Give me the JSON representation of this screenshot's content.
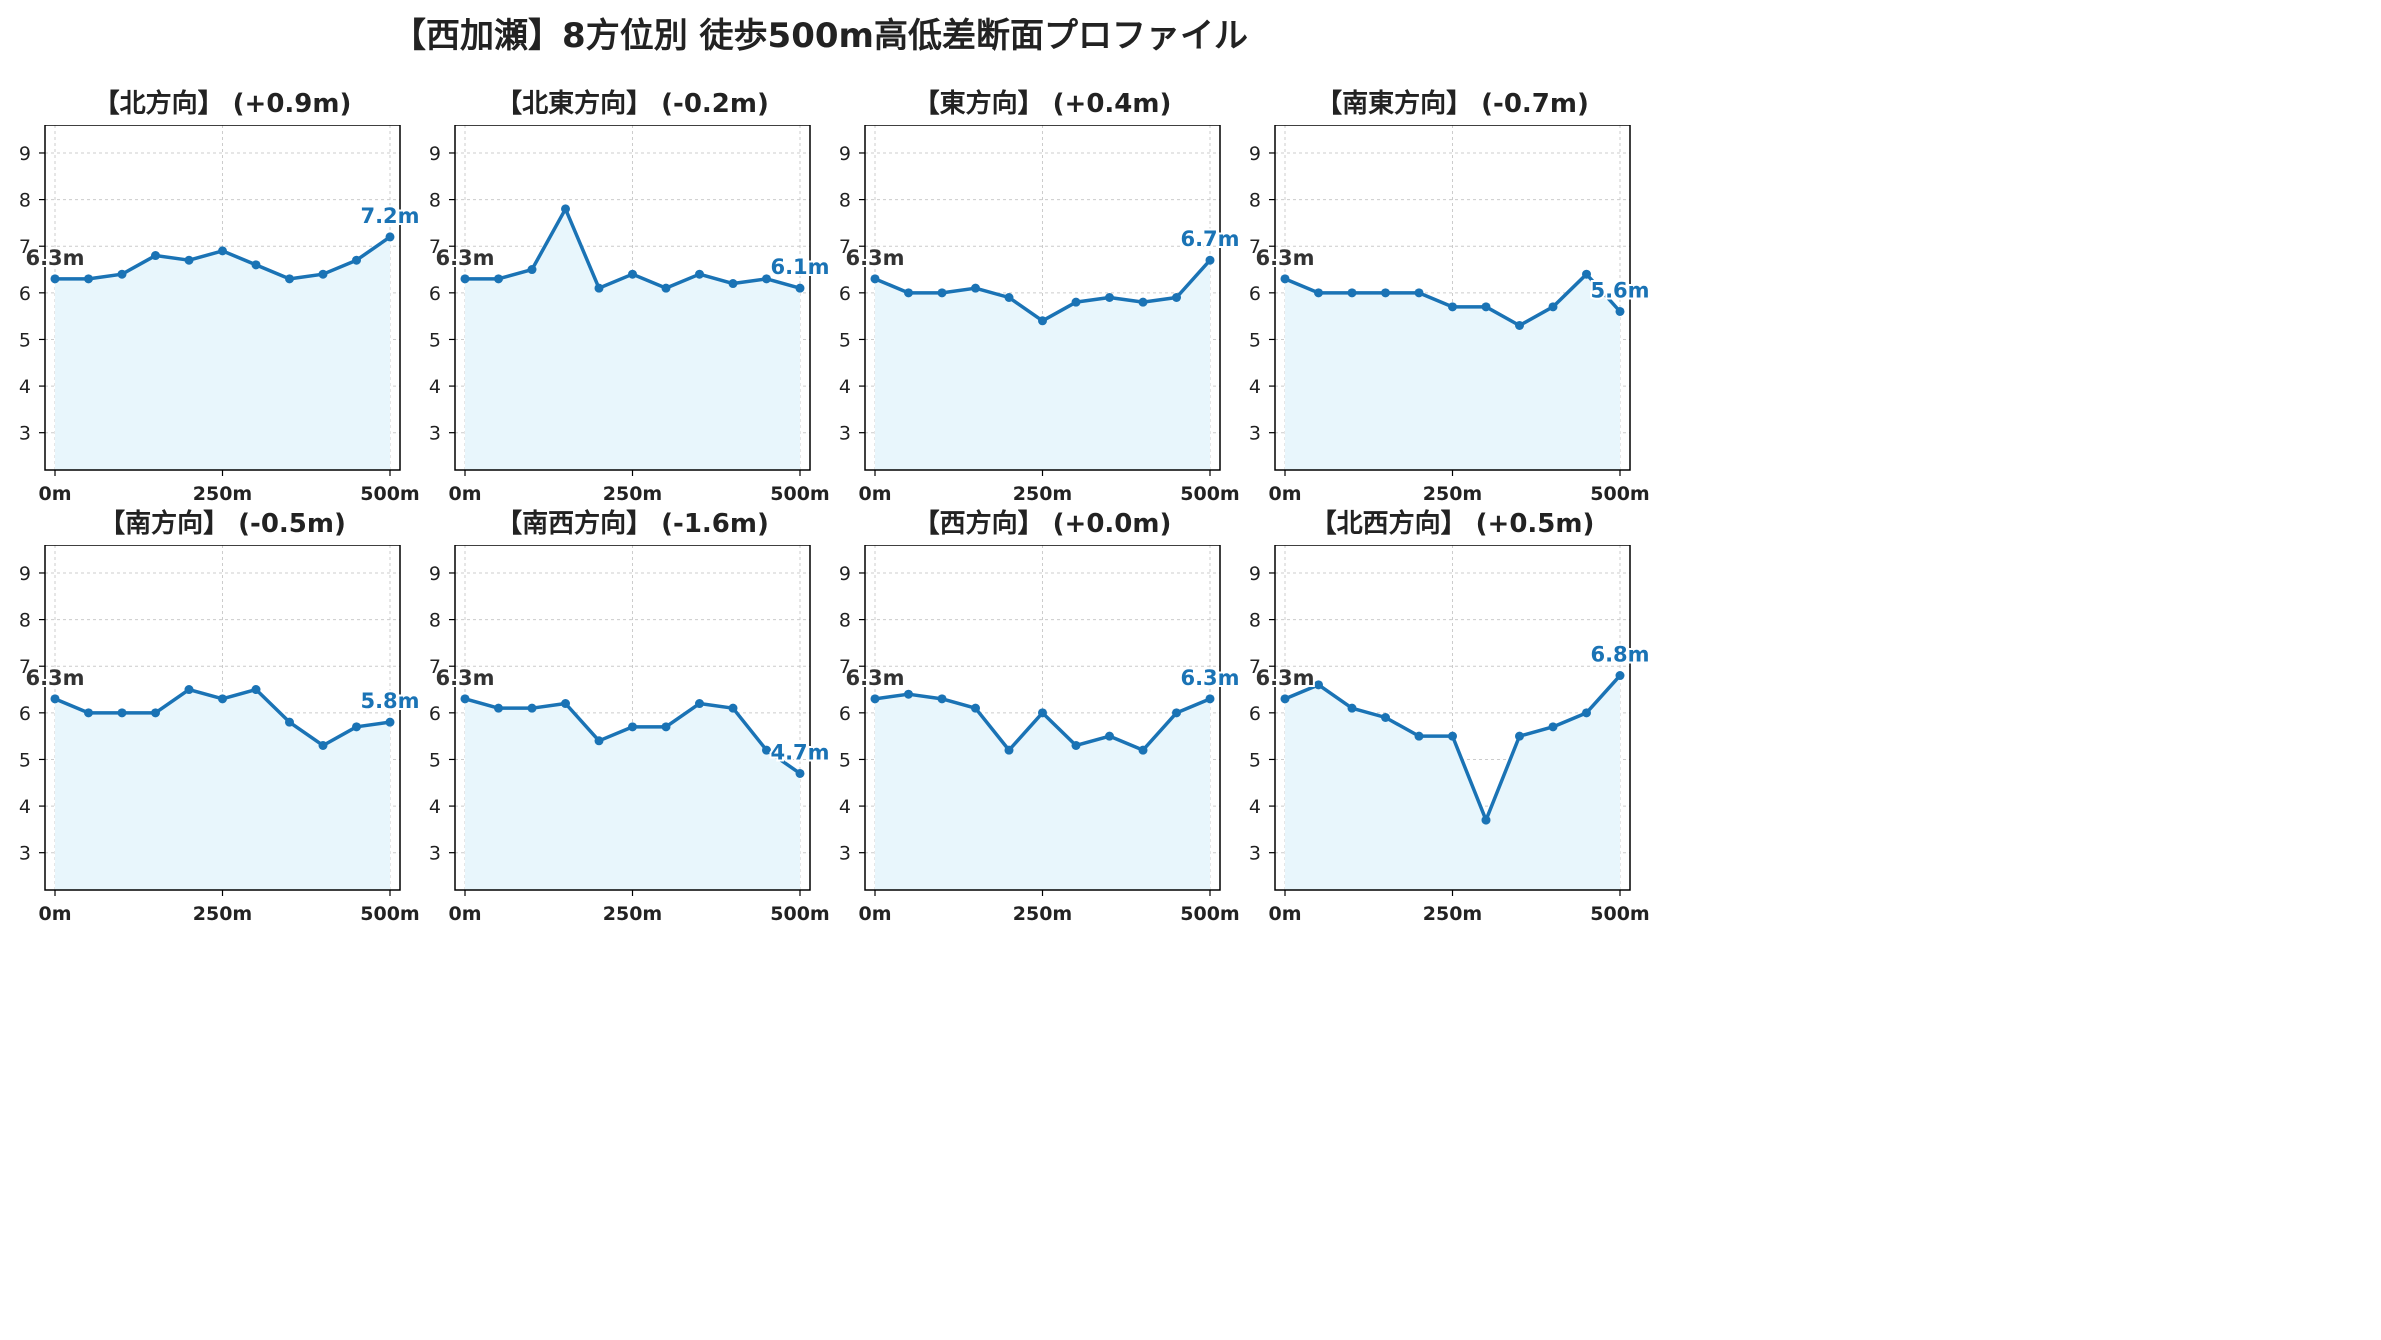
{
  "title": "【西加瀬】8方位別 徒歩500m高低差断面プロファイル",
  "chart_data": [
    {
      "type": "line",
      "title": "【北方向】 (+0.9m)",
      "x": [
        0,
        50,
        100,
        150,
        200,
        250,
        300,
        350,
        400,
        450,
        500
      ],
      "values": [
        6.3,
        6.3,
        6.4,
        6.8,
        6.7,
        6.9,
        6.6,
        6.3,
        6.4,
        6.7,
        7.2
      ],
      "start_label": "6.3m",
      "end_label": "7.2m",
      "ylim": [
        2.2,
        9.6
      ],
      "yticks": [
        "3",
        "4",
        "5",
        "6",
        "7",
        "8",
        "9"
      ],
      "xticks": [
        "0m",
        "250m",
        "500m"
      ],
      "grid": true
    },
    {
      "type": "line",
      "title": "【北東方向】 (-0.2m)",
      "x": [
        0,
        50,
        100,
        150,
        200,
        250,
        300,
        350,
        400,
        450,
        500
      ],
      "values": [
        6.3,
        6.3,
        6.5,
        7.8,
        6.1,
        6.4,
        6.1,
        6.4,
        6.2,
        6.3,
        6.1
      ],
      "start_label": "6.3m",
      "end_label": "6.1m",
      "ylim": [
        2.2,
        9.6
      ],
      "yticks": [
        "3",
        "4",
        "5",
        "6",
        "7",
        "8",
        "9"
      ],
      "xticks": [
        "0m",
        "250m",
        "500m"
      ],
      "grid": true
    },
    {
      "type": "line",
      "title": "【東方向】 (+0.4m)",
      "x": [
        0,
        50,
        100,
        150,
        200,
        250,
        300,
        350,
        400,
        450,
        500
      ],
      "values": [
        6.3,
        6.0,
        6.0,
        6.1,
        5.9,
        5.4,
        5.8,
        5.9,
        5.8,
        5.9,
        6.7
      ],
      "start_label": "6.3m",
      "end_label": "6.7m",
      "ylim": [
        2.2,
        9.6
      ],
      "yticks": [
        "3",
        "4",
        "5",
        "6",
        "7",
        "8",
        "9"
      ],
      "xticks": [
        "0m",
        "250m",
        "500m"
      ],
      "grid": true
    },
    {
      "type": "line",
      "title": "【南東方向】 (-0.7m)",
      "x": [
        0,
        50,
        100,
        150,
        200,
        250,
        300,
        350,
        400,
        450,
        500
      ],
      "values": [
        6.3,
        6.0,
        6.0,
        6.0,
        6.0,
        5.7,
        5.7,
        5.3,
        5.7,
        6.4,
        5.6
      ],
      "start_label": "6.3m",
      "end_label": "5.6m",
      "ylim": [
        2.2,
        9.6
      ],
      "yticks": [
        "3",
        "4",
        "5",
        "6",
        "7",
        "8",
        "9"
      ],
      "xticks": [
        "0m",
        "250m",
        "500m"
      ],
      "grid": true
    },
    {
      "type": "line",
      "title": "【南方向】 (-0.5m)",
      "x": [
        0,
        50,
        100,
        150,
        200,
        250,
        300,
        350,
        400,
        450,
        500
      ],
      "values": [
        6.3,
        6.0,
        6.0,
        6.0,
        6.5,
        6.3,
        6.5,
        5.8,
        5.3,
        5.7,
        5.8
      ],
      "start_label": "6.3m",
      "end_label": "5.8m",
      "ylim": [
        2.2,
        9.6
      ],
      "yticks": [
        "3",
        "4",
        "5",
        "6",
        "7",
        "8",
        "9"
      ],
      "xticks": [
        "0m",
        "250m",
        "500m"
      ],
      "grid": true
    },
    {
      "type": "line",
      "title": "【南西方向】 (-1.6m)",
      "x": [
        0,
        50,
        100,
        150,
        200,
        250,
        300,
        350,
        400,
        450,
        500
      ],
      "values": [
        6.3,
        6.1,
        6.1,
        6.2,
        5.4,
        5.7,
        5.7,
        6.2,
        6.1,
        5.2,
        4.7
      ],
      "start_label": "6.3m",
      "end_label": "4.7m",
      "ylim": [
        2.2,
        9.6
      ],
      "yticks": [
        "3",
        "4",
        "5",
        "6",
        "7",
        "8",
        "9"
      ],
      "xticks": [
        "0m",
        "250m",
        "500m"
      ],
      "grid": true
    },
    {
      "type": "line",
      "title": "【西方向】 (+0.0m)",
      "x": [
        0,
        50,
        100,
        150,
        200,
        250,
        300,
        350,
        400,
        450,
        500
      ],
      "values": [
        6.3,
        6.4,
        6.3,
        6.1,
        5.2,
        6.0,
        5.3,
        5.5,
        5.2,
        6.0,
        6.3
      ],
      "start_label": "6.3m",
      "end_label": "6.3m",
      "ylim": [
        2.2,
        9.6
      ],
      "yticks": [
        "3",
        "4",
        "5",
        "6",
        "7",
        "8",
        "9"
      ],
      "xticks": [
        "0m",
        "250m",
        "500m"
      ],
      "grid": true
    },
    {
      "type": "line",
      "title": "【北西方向】 (+0.5m)",
      "x": [
        0,
        50,
        100,
        150,
        200,
        250,
        300,
        350,
        400,
        450,
        500
      ],
      "values": [
        6.3,
        6.6,
        6.1,
        5.9,
        5.5,
        5.5,
        3.7,
        5.5,
        5.7,
        6.0,
        6.8
      ],
      "start_label": "6.3m",
      "end_label": "6.8m",
      "ylim": [
        2.2,
        9.6
      ],
      "yticks": [
        "3",
        "4",
        "5",
        "6",
        "7",
        "8",
        "9"
      ],
      "xticks": [
        "0m",
        "250m",
        "500m"
      ],
      "grid": true
    }
  ],
  "colors": {
    "line": "#1a73b5",
    "fill": "#e8f6fc",
    "start_label": "#333333",
    "end_label": "#1a73b5",
    "grid": "#cccccc"
  }
}
